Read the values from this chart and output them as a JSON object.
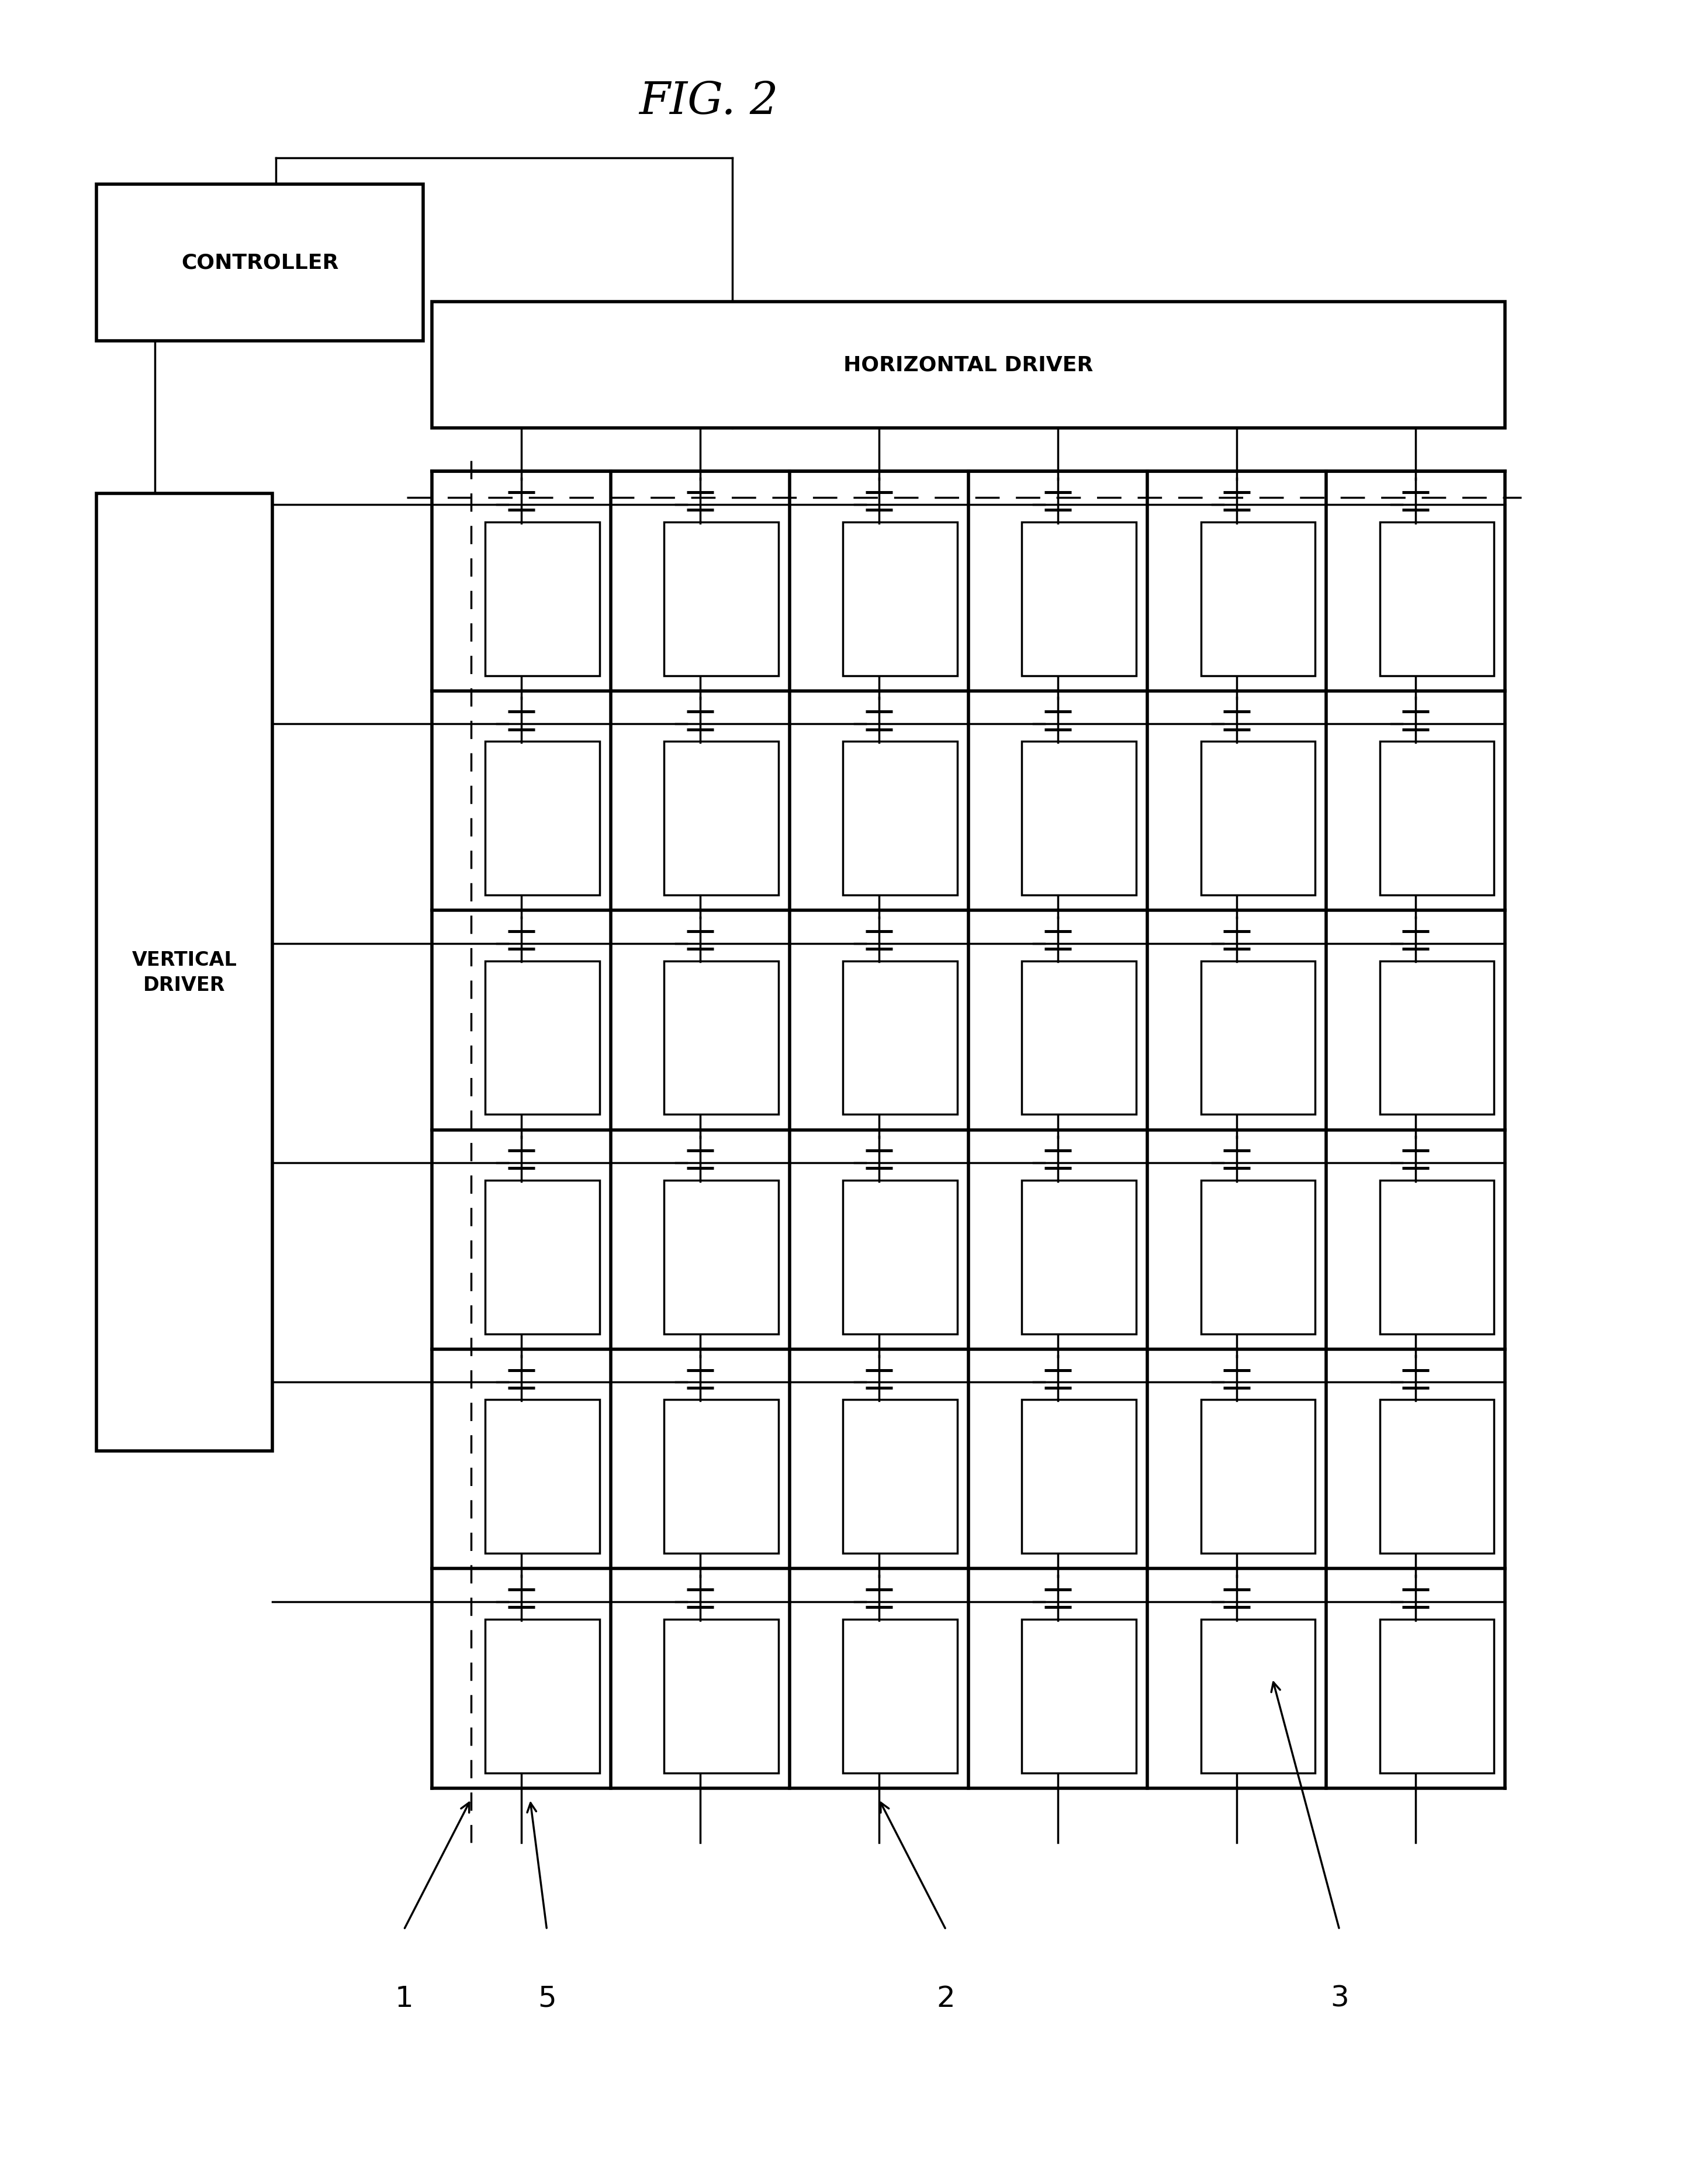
{
  "title": "FIG. 2",
  "background": "#ffffff",
  "fig_width": 28.83,
  "fig_height": 37.37,
  "controller_label": "CONTROLLER",
  "horizontal_driver_label": "HORIZONTAL DRIVER",
  "vertical_driver_label": "VERTICAL\nDRIVER",
  "num_rows": 6,
  "num_cols": 6,
  "labels": [
    "1",
    "5",
    "2",
    "3"
  ],
  "lw_thick": 4.0,
  "lw_medium": 2.5,
  "lw_thin": 1.8
}
